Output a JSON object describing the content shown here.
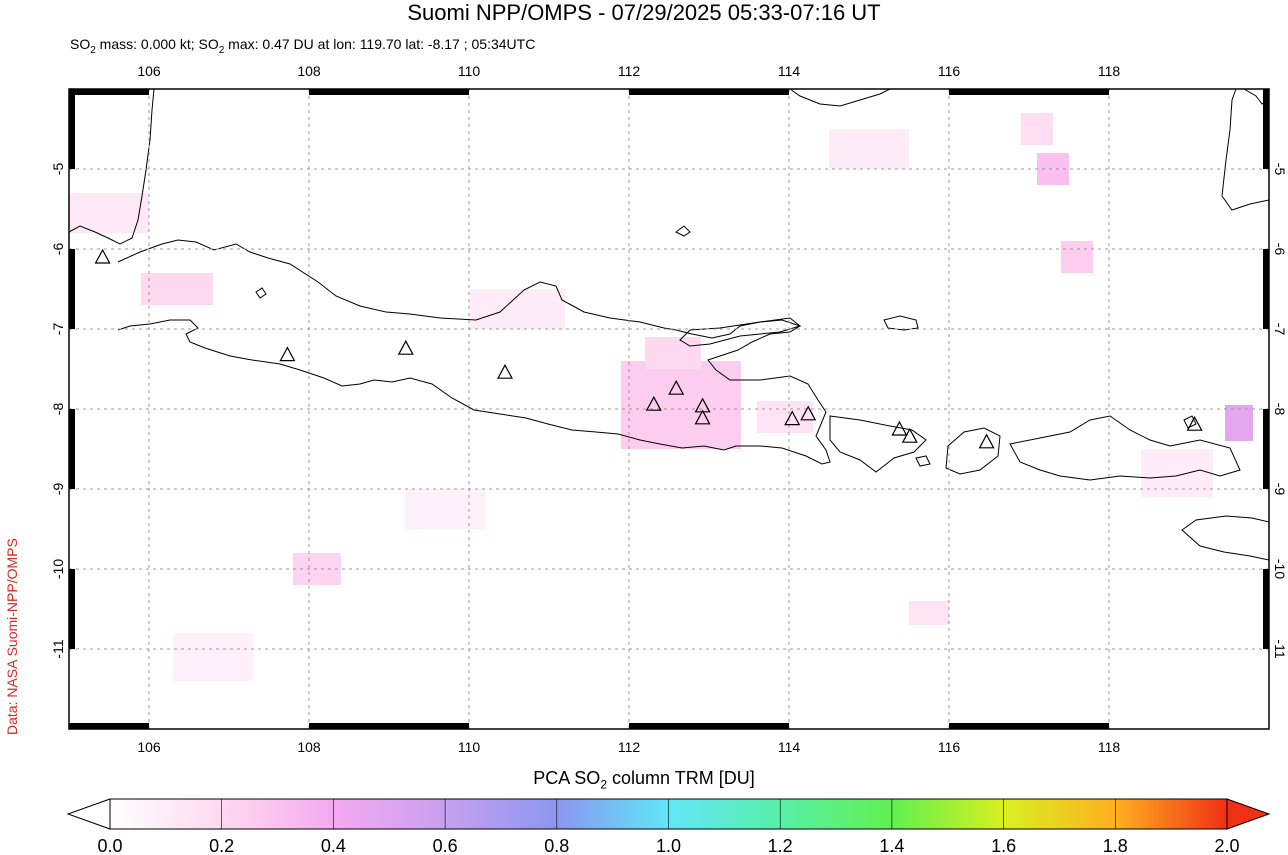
{
  "title": "Suomi NPP/OMPS - 07/29/2025 05:33-07:16 UT",
  "subtitle_parts": {
    "a": "SO",
    "a_sub": "2",
    "b": " mass: 0.000 kt; SO",
    "b_sub": "2",
    "c": " max: 0.47 DU at lon: 119.70 lat: -8.17 ; 05:34UTC"
  },
  "credit": "Data: NASA Suomi-NPP/OMPS",
  "map": {
    "lon_range": [
      105,
      120
    ],
    "lat_range": [
      -12,
      -4
    ],
    "lon_ticks": [
      "106",
      "108",
      "110",
      "112",
      "114",
      "116",
      "118"
    ],
    "lon_tick_values": [
      106,
      108,
      110,
      112,
      114,
      116,
      118
    ],
    "lat_ticks": [
      "-5",
      "-6",
      "-7",
      "-8",
      "-9",
      "-10",
      "-11"
    ],
    "lat_tick_values": [
      -5,
      -6,
      -7,
      -8,
      -9,
      -10,
      -11
    ],
    "grid": true,
    "volcanoes": [
      {
        "lon": 105.42,
        "lat": -6.1
      },
      {
        "lon": 107.73,
        "lat": -7.32
      },
      {
        "lon": 109.21,
        "lat": -7.24
      },
      {
        "lon": 110.45,
        "lat": -7.54
      },
      {
        "lon": 112.31,
        "lat": -7.94
      },
      {
        "lon": 112.59,
        "lat": -7.74
      },
      {
        "lon": 112.92,
        "lat": -7.96
      },
      {
        "lon": 112.92,
        "lat": -8.11
      },
      {
        "lon": 114.04,
        "lat": -8.12
      },
      {
        "lon": 114.24,
        "lat": -8.06
      },
      {
        "lon": 115.38,
        "lat": -8.25
      },
      {
        "lon": 115.51,
        "lat": -8.34
      },
      {
        "lon": 116.47,
        "lat": -8.41
      },
      {
        "lon": 119.07,
        "lat": -8.19
      }
    ],
    "so2_pixels": [
      {
        "lon0": 111.9,
        "lat0": -7.4,
        "lon1": 113.4,
        "lat1": -8.5,
        "du": 0.25
      },
      {
        "lon0": 112.2,
        "lat0": -7.1,
        "lon1": 112.9,
        "lat1": -7.5,
        "du": 0.2
      },
      {
        "lon0": 119.45,
        "lat0": -7.95,
        "lon1": 119.8,
        "lat1": -8.4,
        "du": 0.47
      },
      {
        "lon0": 117.1,
        "lat0": -4.8,
        "lon1": 117.5,
        "lat1": -5.2,
        "du": 0.3
      },
      {
        "lon0": 117.4,
        "lat0": -5.9,
        "lon1": 117.8,
        "lat1": -6.3,
        "du": 0.25
      },
      {
        "lon0": 105.9,
        "lat0": -6.3,
        "lon1": 106.8,
        "lat1": -6.7,
        "du": 0.2
      },
      {
        "lon0": 107.8,
        "lat0": -9.8,
        "lon1": 108.4,
        "lat1": -10.2,
        "du": 0.22
      },
      {
        "lon0": 116.9,
        "lat0": -4.3,
        "lon1": 117.3,
        "lat1": -4.7,
        "du": 0.18
      },
      {
        "lon0": 113.6,
        "lat0": -7.9,
        "lon1": 114.3,
        "lat1": -8.3,
        "du": 0.15
      },
      {
        "lon0": 115.5,
        "lat0": -10.4,
        "lon1": 116.0,
        "lat1": -10.7,
        "du": 0.15
      },
      {
        "lon0": 105.0,
        "lat0": -5.3,
        "lon1": 106.0,
        "lat1": -5.8,
        "du": 0.12
      },
      {
        "lon0": 110.0,
        "lat0": -6.5,
        "lon1": 111.2,
        "lat1": -7.0,
        "du": 0.1
      },
      {
        "lon0": 114.5,
        "lat0": -4.5,
        "lon1": 115.5,
        "lat1": -5.0,
        "du": 0.1
      },
      {
        "lon0": 118.4,
        "lat0": -8.5,
        "lon1": 119.3,
        "lat1": -9.1,
        "du": 0.1
      },
      {
        "lon0": 106.3,
        "lat0": -10.8,
        "lon1": 107.3,
        "lat1": -11.4,
        "du": 0.08
      },
      {
        "lon0": 109.2,
        "lat0": -9.0,
        "lon1": 110.2,
        "lat1": -9.5,
        "du": 0.08
      }
    ]
  },
  "colorbar": {
    "title_a": "PCA SO",
    "title_sub": "2",
    "title_b": " column TRM [DU]",
    "min": 0,
    "max": 2,
    "tick_labels": [
      "0.0",
      "0.2",
      "0.4",
      "0.6",
      "0.8",
      "1.0",
      "1.2",
      "1.4",
      "1.6",
      "1.8",
      "2.0"
    ],
    "stops": [
      "#ffffff",
      "#ffd9f0",
      "#f5a9f0",
      "#c8a0f0",
      "#8c96f0",
      "#60e6f8",
      "#58f0a8",
      "#60f050",
      "#d8f020",
      "#ffb020",
      "#f03014"
    ]
  }
}
